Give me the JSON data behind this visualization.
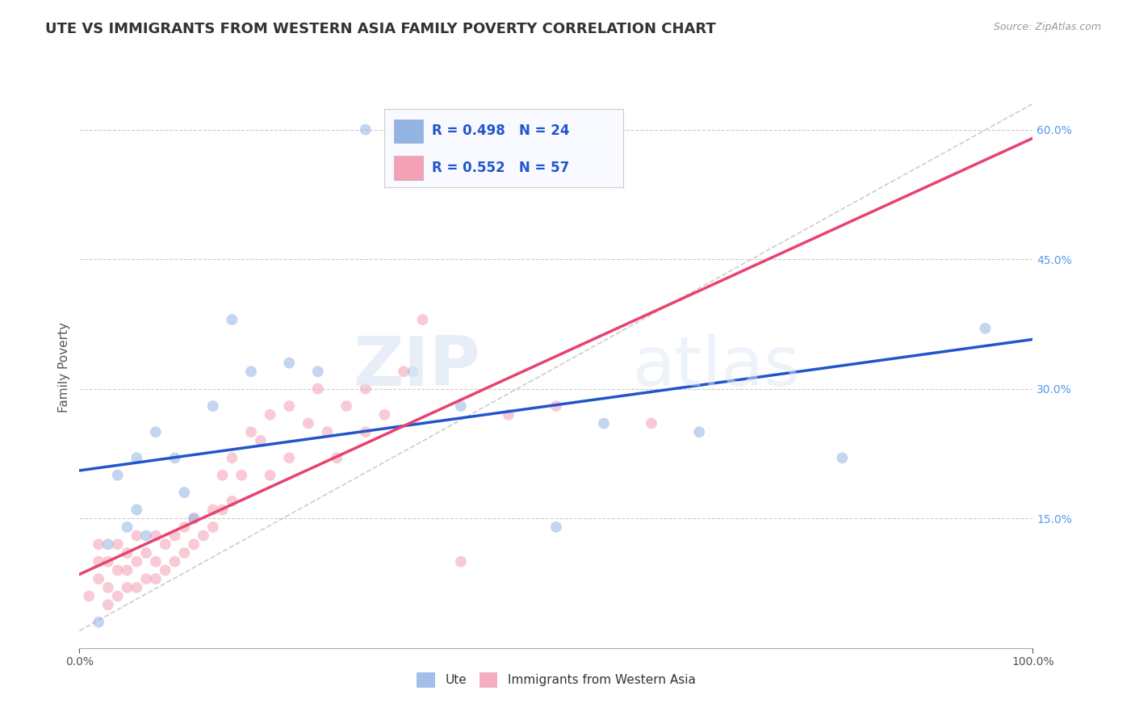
{
  "title": "UTE VS IMMIGRANTS FROM WESTERN ASIA FAMILY POVERTY CORRELATION CHART",
  "source": "Source: ZipAtlas.com",
  "ylabel": "Family Poverty",
  "y_ticks": [
    0.15,
    0.3,
    0.45,
    0.6
  ],
  "xlim": [
    0.0,
    1.0
  ],
  "ylim": [
    0.0,
    0.65
  ],
  "ute_R": 0.498,
  "ute_N": 24,
  "imm_R": 0.552,
  "imm_N": 57,
  "ute_color": "#92b4e3",
  "imm_color": "#f4a0b5",
  "ute_line_color": "#2255cc",
  "imm_line_color": "#e8426e",
  "trend_line_color": "#cccccc",
  "background_color": "#ffffff",
  "watermark_zip": "ZIP",
  "watermark_atlas": "atlas",
  "legend_entries": [
    "Ute",
    "Immigrants from Western Asia"
  ],
  "title_fontsize": 13,
  "axis_label_fontsize": 11,
  "tick_fontsize": 10,
  "dot_size": 100,
  "dot_alpha": 0.55,
  "ute_scatter_x": [
    0.02,
    0.03,
    0.04,
    0.05,
    0.06,
    0.06,
    0.07,
    0.08,
    0.1,
    0.11,
    0.12,
    0.14,
    0.16,
    0.18,
    0.22,
    0.25,
    0.3,
    0.35,
    0.4,
    0.5,
    0.55,
    0.65,
    0.8,
    0.95
  ],
  "ute_scatter_y": [
    0.03,
    0.12,
    0.2,
    0.14,
    0.16,
    0.22,
    0.13,
    0.25,
    0.22,
    0.18,
    0.15,
    0.28,
    0.38,
    0.32,
    0.33,
    0.32,
    0.6,
    0.32,
    0.28,
    0.14,
    0.26,
    0.25,
    0.22,
    0.37
  ],
  "imm_scatter_x": [
    0.01,
    0.02,
    0.02,
    0.02,
    0.03,
    0.03,
    0.03,
    0.04,
    0.04,
    0.04,
    0.05,
    0.05,
    0.05,
    0.06,
    0.06,
    0.06,
    0.07,
    0.07,
    0.08,
    0.08,
    0.08,
    0.09,
    0.09,
    0.1,
    0.1,
    0.11,
    0.11,
    0.12,
    0.12,
    0.13,
    0.14,
    0.14,
    0.15,
    0.15,
    0.16,
    0.16,
    0.17,
    0.18,
    0.19,
    0.2,
    0.2,
    0.22,
    0.22,
    0.24,
    0.25,
    0.26,
    0.27,
    0.28,
    0.3,
    0.3,
    0.32,
    0.34,
    0.36,
    0.4,
    0.45,
    0.5,
    0.6
  ],
  "imm_scatter_y": [
    0.06,
    0.08,
    0.1,
    0.12,
    0.05,
    0.07,
    0.1,
    0.06,
    0.09,
    0.12,
    0.07,
    0.09,
    0.11,
    0.07,
    0.1,
    0.13,
    0.08,
    0.11,
    0.08,
    0.1,
    0.13,
    0.09,
    0.12,
    0.1,
    0.13,
    0.11,
    0.14,
    0.12,
    0.15,
    0.13,
    0.14,
    0.16,
    0.16,
    0.2,
    0.17,
    0.22,
    0.2,
    0.25,
    0.24,
    0.2,
    0.27,
    0.22,
    0.28,
    0.26,
    0.3,
    0.25,
    0.22,
    0.28,
    0.25,
    0.3,
    0.27,
    0.32,
    0.38,
    0.1,
    0.27,
    0.28,
    0.26
  ]
}
